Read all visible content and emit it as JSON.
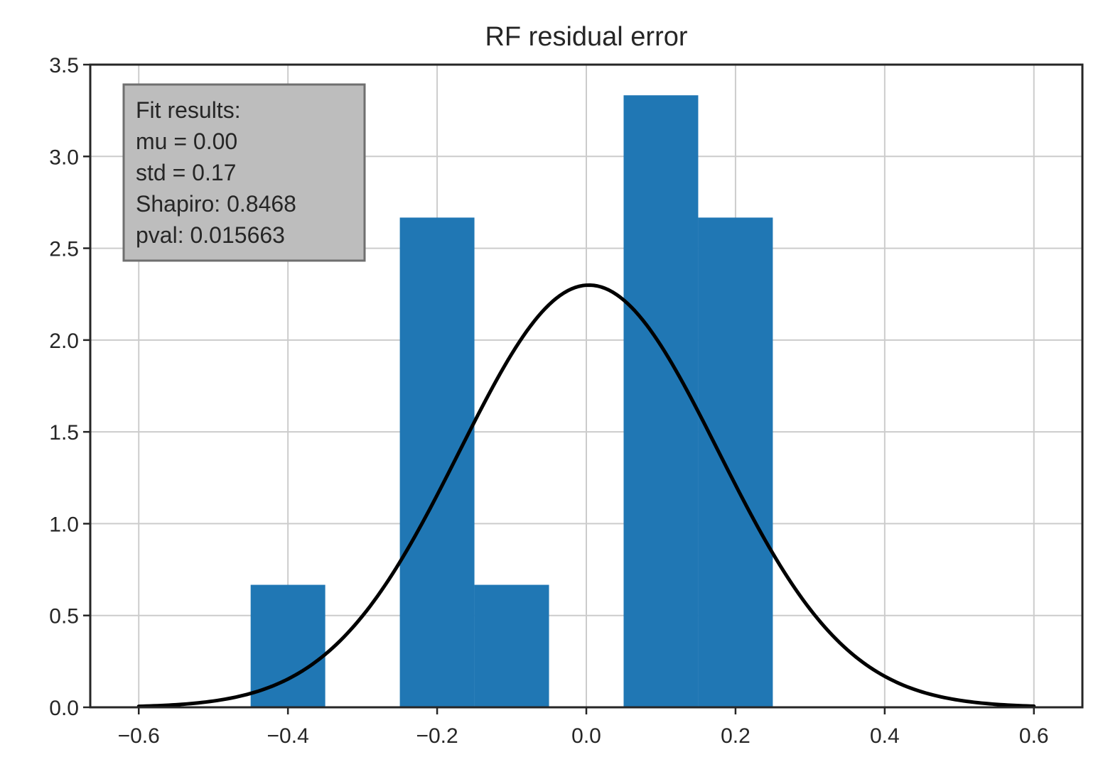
{
  "chart_data": {
    "type": "bar",
    "title": "RF residual error",
    "xlabel": "",
    "ylabel": "",
    "xlim": [
      -0.665,
      0.665
    ],
    "ylim": [
      0,
      3.5
    ],
    "grid": true,
    "x_ticks": [
      -0.6,
      -0.4,
      -0.2,
      0.0,
      0.2,
      0.4,
      0.6
    ],
    "x_tick_labels": [
      "−0.6",
      "−0.4",
      "−0.2",
      "0.0",
      "0.2",
      "0.4",
      "0.6"
    ],
    "y_ticks": [
      0.0,
      0.5,
      1.0,
      1.5,
      2.0,
      2.5,
      3.0,
      3.5
    ],
    "y_tick_labels": [
      "0.0",
      "0.5",
      "1.0",
      "1.5",
      "2.0",
      "2.5",
      "3.0",
      "3.5"
    ],
    "histogram": {
      "bin_edges": [
        -0.45,
        -0.35,
        -0.25,
        -0.15,
        -0.05,
        0.05,
        0.15,
        0.25
      ],
      "values": [
        0.667,
        0.0,
        2.667,
        0.667,
        0.0,
        3.333,
        2.667
      ],
      "color": "#2077b4"
    },
    "fit_curve": {
      "type": "normal_pdf",
      "mu": 0.0035,
      "sigma": 0.1735,
      "x_range": [
        -0.6,
        0.6
      ],
      "color": "#000000"
    },
    "annotation": {
      "lines": [
        "Fit results:",
        "mu = 0.00",
        "std = 0.17",
        "Shapiro: 0.8468",
        "pval: 0.015663"
      ],
      "box_color": "#bdbdbd",
      "placement": "top-left"
    }
  }
}
